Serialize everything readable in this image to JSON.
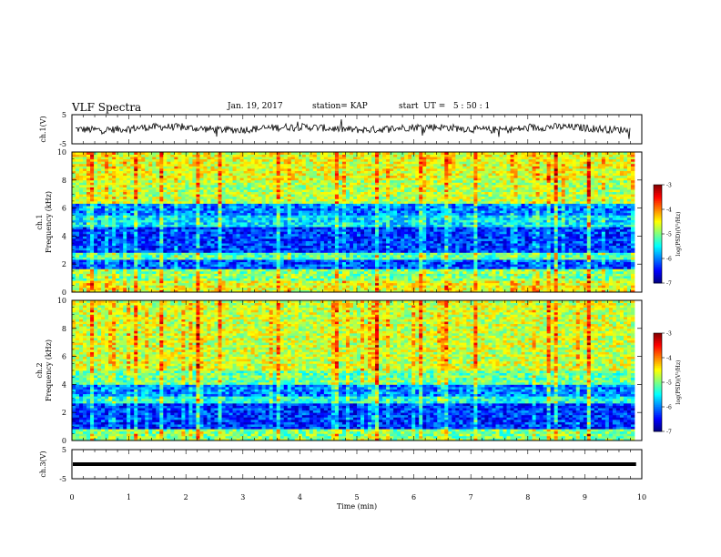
{
  "header": {
    "title": "VLF Spectra",
    "date": "Jan. 19, 2017",
    "station": "station= KAP",
    "start": "start  UT =   5 : 50 : 1"
  },
  "chart_data": [
    {
      "type": "line",
      "ylabel": "ch.1(V)",
      "ylim": [
        -5,
        5
      ],
      "yticks": [
        "5",
        "-5"
      ],
      "xlim": [
        0,
        10
      ],
      "description_free": true,
      "baseline_v": 0.3,
      "noise_amplitude_v": 1.6
    },
    {
      "type": "heatmap",
      "ylabel": "ch.1",
      "ylabel2": "Frequency (kHz)",
      "ylim": [
        0,
        10
      ],
      "yticks": [
        "0",
        "2",
        "4",
        "6",
        "8",
        "10"
      ],
      "xlim": [
        0,
        10
      ],
      "colorbar": {
        "label": "log(PSD)(V²/Hz)",
        "ticks": [
          "-3",
          "-4",
          "-5",
          "-6",
          "-7"
        ],
        "range": [
          -7,
          -3
        ]
      },
      "bands": [
        {
          "from": 0.0,
          "to": 0.9,
          "level": -4.6
        },
        {
          "from": 0.9,
          "to": 1.6,
          "level": -5.0
        },
        {
          "from": 1.6,
          "to": 2.3,
          "level": -6.2
        },
        {
          "from": 2.3,
          "to": 2.9,
          "level": -5.2
        },
        {
          "from": 2.9,
          "to": 4.6,
          "level": -6.3
        },
        {
          "from": 4.6,
          "to": 5.5,
          "level": -5.6
        },
        {
          "from": 5.5,
          "to": 6.3,
          "level": -6.0
        },
        {
          "from": 6.3,
          "to": 8.0,
          "level": -4.8
        },
        {
          "from": 8.0,
          "to": 10.0,
          "level": -4.6
        }
      ]
    },
    {
      "type": "heatmap",
      "ylabel": "ch.2",
      "ylabel2": "Frequency (kHz)",
      "ylim": [
        0,
        10
      ],
      "yticks": [
        "0",
        "2",
        "4",
        "6",
        "8",
        "10"
      ],
      "xlim": [
        0,
        10
      ],
      "colorbar": {
        "label": "log(PSD)(V²/Hz)",
        "ticks": [
          "-3",
          "-4",
          "-5",
          "-6",
          "-7"
        ],
        "range": [
          -7,
          -3
        ]
      },
      "bands": [
        {
          "from": 0.0,
          "to": 0.9,
          "level": -5.0
        },
        {
          "from": 0.9,
          "to": 2.6,
          "level": -6.3
        },
        {
          "from": 2.6,
          "to": 3.2,
          "level": -5.4
        },
        {
          "from": 3.2,
          "to": 4.0,
          "level": -6.0
        },
        {
          "from": 4.0,
          "to": 5.0,
          "level": -5.1
        },
        {
          "from": 5.0,
          "to": 10.0,
          "level": -4.7
        }
      ]
    },
    {
      "type": "line",
      "ylabel": "ch.3(V)",
      "ylim": [
        -5,
        5
      ],
      "yticks": [
        "5",
        "-5"
      ],
      "xlim": [
        0,
        10
      ],
      "baseline_v": 0.0,
      "noise_amplitude_v": 0.0
    }
  ],
  "xaxis": {
    "label": "Time (min)",
    "ticks": [
      "0",
      "1",
      "2",
      "3",
      "4",
      "5",
      "6",
      "7",
      "8",
      "9",
      "10"
    ],
    "range": [
      0,
      10
    ]
  },
  "spikes_min": [
    0.35,
    1.1,
    1.55,
    2.2,
    2.55,
    3.6,
    4.6,
    5.3,
    6.1,
    6.55,
    7.05,
    8.35,
    8.45,
    9.05
  ],
  "colors": {
    "axis": "#000000",
    "trace": "#000000"
  }
}
